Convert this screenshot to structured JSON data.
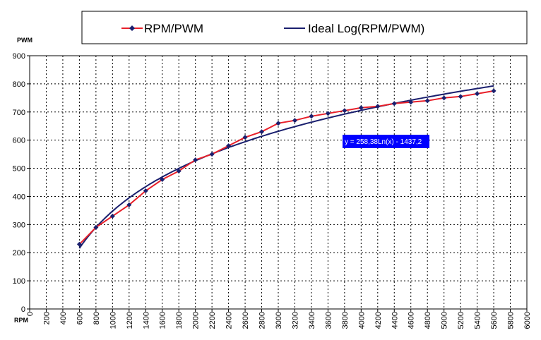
{
  "chart_data": {
    "type": "line",
    "ylabel": "PWM",
    "xlabel": "RPM",
    "xlim": [
      0,
      6000
    ],
    "ylim": [
      0,
      900
    ],
    "x_ticks": [
      0,
      200,
      400,
      600,
      800,
      1000,
      1200,
      1400,
      1600,
      1800,
      2000,
      2200,
      2400,
      2600,
      2800,
      3000,
      3200,
      3400,
      3600,
      3800,
      4000,
      4200,
      4400,
      4600,
      4800,
      5000,
      5200,
      5400,
      5600,
      5800,
      6000
    ],
    "y_ticks": [
      0,
      100,
      200,
      300,
      400,
      500,
      600,
      700,
      800,
      900
    ],
    "grid": true,
    "legend_position": "top",
    "series": [
      {
        "name": "RPM/PWM",
        "color": "#e8202a",
        "marker_color": "#1a1f6e",
        "marker": "diamond",
        "x": [
          600,
          800,
          1000,
          1200,
          1400,
          1600,
          1800,
          2000,
          2200,
          2400,
          2600,
          2800,
          3000,
          3200,
          3400,
          3600,
          3800,
          4000,
          4200,
          4400,
          4600,
          4800,
          5000,
          5200,
          5400,
          5600
        ],
        "y": [
          230,
          290,
          330,
          370,
          420,
          460,
          490,
          530,
          550,
          580,
          610,
          630,
          660,
          670,
          685,
          695,
          705,
          715,
          720,
          730,
          735,
          740,
          750,
          755,
          765,
          775
        ]
      },
      {
        "name": "Ideal Log(RPM/PWM)",
        "color": "#1a1f6e",
        "type": "trendline",
        "equation": {
          "a": 258.38,
          "b": -1437.2
        },
        "x_range": [
          600,
          5600
        ]
      }
    ],
    "annotations": [
      {
        "text": "y = 258,38Ln(x) - 1437,2",
        "bg_color": "#0000ff"
      }
    ]
  }
}
